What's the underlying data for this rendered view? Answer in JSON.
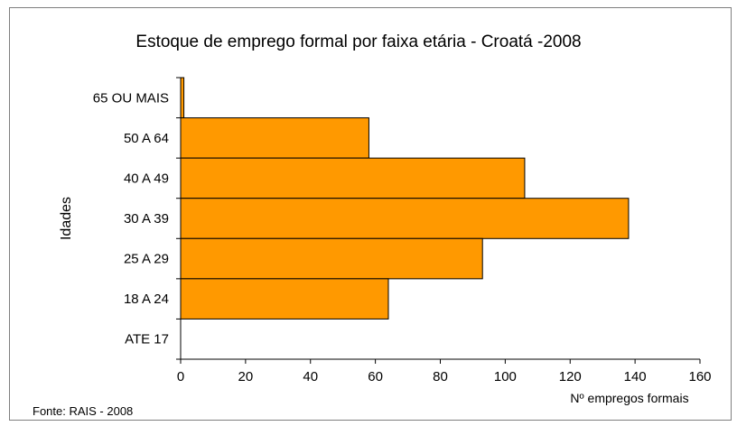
{
  "chart_data": {
    "type": "bar",
    "orientation": "horizontal",
    "title": "Estoque de emprego formal por faixa etária - Croatá -2008",
    "xlabel": "Nº empregos formais",
    "ylabel": "Idades",
    "categories": [
      "65 OU MAIS",
      "50 A 64",
      "40 A 49",
      "30 A 39",
      "25 A 29",
      "18 A 24",
      "ATE 17"
    ],
    "values": [
      1,
      58,
      106,
      138,
      93,
      64,
      0
    ],
    "xlim": [
      0,
      160
    ],
    "xticks": [
      "0",
      "20",
      "40",
      "60",
      "80",
      "100",
      "120",
      "140",
      "160"
    ],
    "grid": false,
    "legend": "none",
    "bar_color": "#FF9900",
    "source": "Fonte: RAIS - 2008"
  }
}
